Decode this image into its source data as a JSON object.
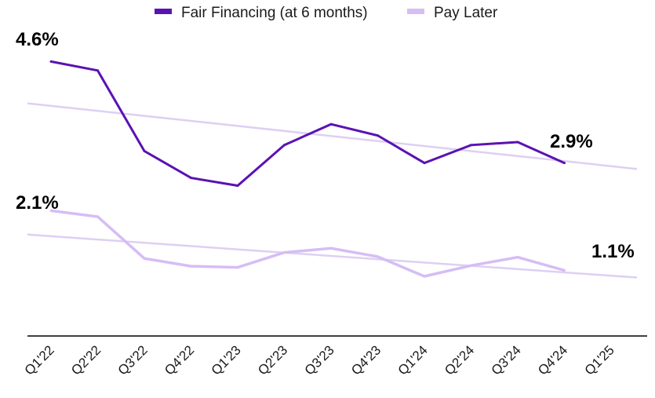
{
  "chart_data": {
    "type": "line",
    "title": "",
    "xlabel": "",
    "ylabel": "",
    "categories": [
      "Q1'22",
      "Q2'22",
      "Q3'22",
      "Q4'22",
      "Q1'23",
      "Q2'23",
      "Q3'23",
      "Q4'23",
      "Q1'24",
      "Q2'24",
      "Q3'24",
      "Q4'24",
      "Q1'25"
    ],
    "ylim": [
      0,
      5
    ],
    "grid": false,
    "legend_position": "top-center",
    "series": [
      {
        "name": "Fair Financing (at 6 months)",
        "color": "#5a12b3",
        "values": [
          4.6,
          4.45,
          3.1,
          2.65,
          2.52,
          3.2,
          3.55,
          3.36,
          2.9,
          3.2,
          3.25,
          2.9,
          null
        ]
      },
      {
        "name": "Pay Later",
        "color": "#d6bdf5",
        "values": [
          2.1,
          2.0,
          1.3,
          1.17,
          1.15,
          1.4,
          1.47,
          1.33,
          1.0,
          1.18,
          1.32,
          1.1,
          null
        ]
      }
    ],
    "trendlines": [
      {
        "series": "Fair Financing (at 6 months)",
        "color": "#ddd0f3",
        "start_value": 3.9,
        "end_value": 2.8
      },
      {
        "series": "Pay Later",
        "color": "#ddd0f3",
        "start_value": 1.7,
        "end_value": 0.98
      }
    ],
    "annotations": [
      {
        "series": "Fair Financing (at 6 months)",
        "category": "Q1'22",
        "text": "4.6%"
      },
      {
        "series": "Fair Financing (at 6 months)",
        "category": "Q4'24",
        "text": "2.9%"
      },
      {
        "series": "Pay Later",
        "category": "Q1'22",
        "text": "2.1%"
      },
      {
        "series": "Pay Later",
        "category": "Q4'24",
        "text": "1.1%"
      }
    ]
  }
}
